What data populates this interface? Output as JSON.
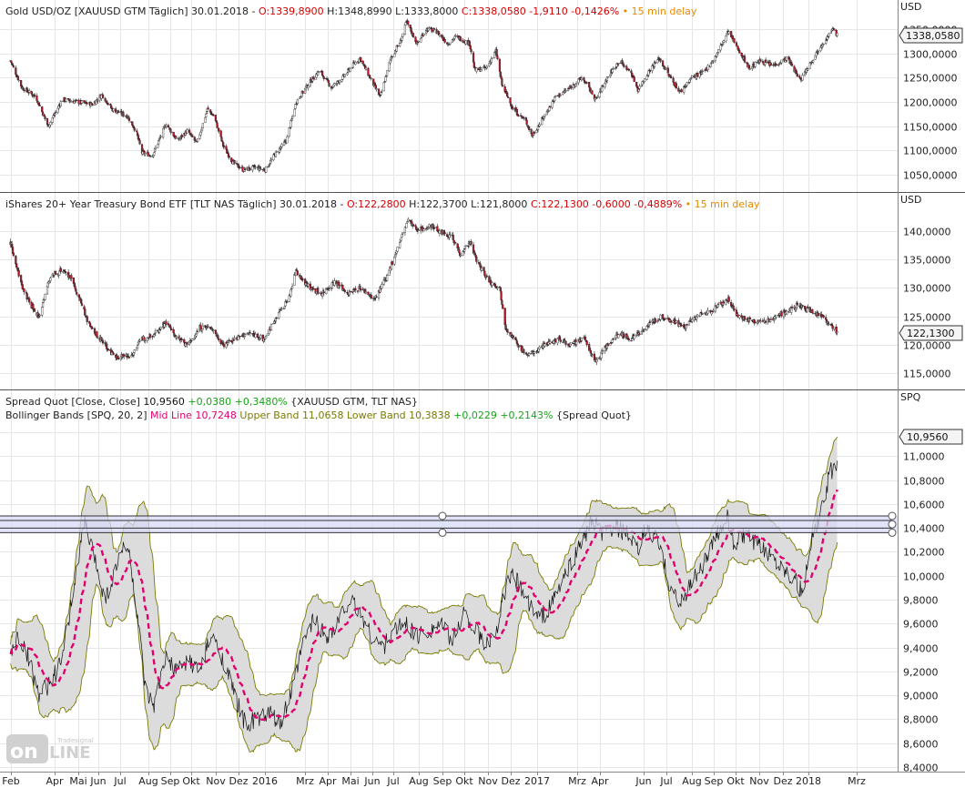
{
  "colors": {
    "up": "#ffffff",
    "down": "#b01c2c",
    "wick": "#222222",
    "grid": "#e6e6e6",
    "separator": "#555555",
    "ohlc_red": "#d40000",
    "delay_orange": "#e68a00",
    "midline": "#e0006e",
    "bands": "#7a7a00",
    "bandfill": "#dcdcdc",
    "spread": "#111111",
    "change_green": "#1aa31a",
    "zone_fill": "#d7d9f5",
    "zone_line": "#333333"
  },
  "panels": [
    {
      "unit": "USD",
      "legend": {
        "name": "Gold USD/OZ [XAUUSD GTM Täglich] 30.01.2018 - ",
        "open": "O:1339,8900",
        "high": " H:1348,8990",
        "low": " L:1333,8000 ",
        "close_change": "C:1338,0580 -1,9110 -0,1426%",
        "delay": " • 15 min delay"
      },
      "last_value": "1338,0580",
      "y_ticks": [
        "1050,0000",
        "1100,0000",
        "1150,0000",
        "1200,0000",
        "1250,0000",
        "1300,0000",
        "1350,0000"
      ]
    },
    {
      "unit": "USD",
      "legend": {
        "name": "iShares 20+ Year Treasury Bond ETF [TLT NAS Täglich] 30.01.2018 - ",
        "open": "O:122,2800",
        "high": " H:122,3700",
        "low": " L:121,8000 ",
        "close_change": "C:122,1300 -0,6000 -0,4889%",
        "delay": " • 15 min delay"
      },
      "last_value": "122,1300",
      "y_ticks": [
        "115,0000",
        "120,0000",
        "125,0000",
        "130,0000",
        "135,0000",
        "140,0000"
      ]
    },
    {
      "unit": "SPQ",
      "legend1": {
        "name": "Spread Quot [Close, Close] ",
        "last": "10,9560",
        "change": " +0,0380 +0,3480%",
        "params": " {XAUUSD GTM, TLT NAS}"
      },
      "legend2": {
        "name": "Bollinger Bands [SPQ, 20, 2] ",
        "mid": "Mid Line 10,7248",
        "upper": " Upper Band 11,0658",
        "lower": " Lower Band 10,3838",
        "change": " +0,0229 +0,2143%",
        "params": " {Spread Quot}"
      },
      "last_value": "10,9560",
      "y_ticks": [
        "8,4000",
        "8,6000",
        "8,8000",
        "9,0000",
        "9,2000",
        "9,4000",
        "9,6000",
        "9,8000",
        "10,0000",
        "10,2000",
        "10,4000",
        "10,6000",
        "10,8000",
        "11,0000",
        "11,2000"
      ]
    }
  ],
  "x_labels": [
    "Feb",
    "Apr",
    "Mai",
    "Jun",
    "Jul",
    "Aug",
    "Sep",
    "Okt",
    "Nov",
    "Dez",
    "2016",
    "Mrz",
    "Apr",
    "Mai",
    "Jun",
    "Jul",
    "Aug",
    "Sep",
    "Okt",
    "Nov",
    "Dez",
    "2017",
    "Mrz",
    "Apr",
    "Jun",
    "Jul",
    "Aug",
    "Sep",
    "Okt",
    "Nov",
    "Dez",
    "2018",
    "Mrz"
  ],
  "chart_data": [
    {
      "type": "candlestick",
      "title": "Gold USD/OZ [XAUUSD GTM Täglich]",
      "ylabel": "USD",
      "ylim": [
        1000,
        1380
      ],
      "last": 1338.058,
      "close_path": [
        [
          "2015-01-26",
          1285
        ],
        [
          "2015-02-10",
          1230
        ],
        [
          "2015-03-01",
          1210
        ],
        [
          "2015-03-17",
          1150
        ],
        [
          "2015-04-05",
          1205
        ],
        [
          "2015-04-25",
          1200
        ],
        [
          "2015-05-15",
          1195
        ],
        [
          "2015-05-28",
          1215
        ],
        [
          "2015-06-10",
          1185
        ],
        [
          "2015-07-01",
          1170
        ],
        [
          "2015-07-12",
          1140
        ],
        [
          "2015-07-20",
          1095
        ],
        [
          "2015-08-03",
          1090
        ],
        [
          "2015-08-21",
          1155
        ],
        [
          "2015-09-05",
          1120
        ],
        [
          "2015-09-18",
          1140
        ],
        [
          "2015-10-01",
          1115
        ],
        [
          "2015-10-15",
          1185
        ],
        [
          "2015-10-24",
          1170
        ],
        [
          "2015-11-05",
          1110
        ],
        [
          "2015-11-18",
          1075
        ],
        [
          "2015-12-02",
          1060
        ],
        [
          "2015-12-17",
          1065
        ],
        [
          "2015-12-31",
          1060
        ],
        [
          "2016-01-12",
          1090
        ],
        [
          "2016-01-28",
          1120
        ],
        [
          "2016-02-10",
          1200
        ],
        [
          "2016-02-28",
          1240
        ],
        [
          "2016-03-12",
          1265
        ],
        [
          "2016-03-28",
          1230
        ],
        [
          "2016-04-12",
          1250
        ],
        [
          "2016-04-28",
          1280
        ],
        [
          "2016-05-05",
          1290
        ],
        [
          "2016-05-20",
          1245
        ],
        [
          "2016-06-01",
          1210
        ],
        [
          "2016-06-15",
          1290
        ],
        [
          "2016-06-28",
          1325
        ],
        [
          "2016-07-06",
          1365
        ],
        [
          "2016-07-20",
          1320
        ],
        [
          "2016-08-01",
          1350
        ],
        [
          "2016-08-15",
          1345
        ],
        [
          "2016-08-30",
          1320
        ],
        [
          "2016-09-10",
          1335
        ],
        [
          "2016-09-28",
          1320
        ],
        [
          "2016-10-05",
          1265
        ],
        [
          "2016-10-20",
          1270
        ],
        [
          "2016-11-02",
          1305
        ],
        [
          "2016-11-10",
          1235
        ],
        [
          "2016-11-25",
          1185
        ],
        [
          "2016-12-12",
          1160
        ],
        [
          "2016-12-20",
          1130
        ],
        [
          "2017-01-05",
          1170
        ],
        [
          "2017-01-20",
          1210
        ],
        [
          "2017-02-05",
          1225
        ],
        [
          "2017-02-25",
          1250
        ],
        [
          "2017-03-15",
          1205
        ],
        [
          "2017-03-30",
          1250
        ],
        [
          "2017-04-15",
          1285
        ],
        [
          "2017-05-01",
          1260
        ],
        [
          "2017-05-10",
          1225
        ],
        [
          "2017-05-25",
          1265
        ],
        [
          "2017-06-07",
          1290
        ],
        [
          "2017-06-20",
          1255
        ],
        [
          "2017-07-05",
          1220
        ],
        [
          "2017-07-20",
          1250
        ],
        [
          "2017-08-05",
          1260
        ],
        [
          "2017-08-20",
          1290
        ],
        [
          "2017-09-07",
          1345
        ],
        [
          "2017-09-20",
          1310
        ],
        [
          "2017-10-05",
          1270
        ],
        [
          "2017-10-20",
          1285
        ],
        [
          "2017-11-05",
          1275
        ],
        [
          "2017-11-25",
          1290
        ],
        [
          "2017-12-12",
          1245
        ],
        [
          "2017-12-25",
          1280
        ],
        [
          "2018-01-10",
          1320
        ],
        [
          "2018-01-25",
          1350
        ],
        [
          "2018-01-30",
          1338
        ]
      ]
    },
    {
      "type": "candlestick",
      "title": "iShares 20+ Year Treasury Bond ETF [TLT NAS Täglich]",
      "ylabel": "USD",
      "ylim": [
        113,
        144
      ],
      "last": 122.13,
      "close_path": [
        [
          "2015-01-26",
          138
        ],
        [
          "2015-02-08",
          131
        ],
        [
          "2015-02-22",
          127
        ],
        [
          "2015-03-05",
          125
        ],
        [
          "2015-03-20",
          132
        ],
        [
          "2015-04-02",
          133
        ],
        [
          "2015-04-15",
          132
        ],
        [
          "2015-04-28",
          128
        ],
        [
          "2015-05-12",
          123
        ],
        [
          "2015-06-01",
          120
        ],
        [
          "2015-06-12",
          118
        ],
        [
          "2015-07-05",
          118
        ],
        [
          "2015-07-20",
          121
        ],
        [
          "2015-08-05",
          122
        ],
        [
          "2015-08-21",
          124
        ],
        [
          "2015-09-05",
          121
        ],
        [
          "2015-09-20",
          120
        ],
        [
          "2015-10-05",
          123
        ],
        [
          "2015-10-20",
          123
        ],
        [
          "2015-11-05",
          120
        ],
        [
          "2015-11-20",
          121
        ],
        [
          "2015-12-10",
          122
        ],
        [
          "2015-12-30",
          121
        ],
        [
          "2016-01-15",
          125
        ],
        [
          "2016-01-31",
          128
        ],
        [
          "2016-02-10",
          133
        ],
        [
          "2016-02-28",
          130
        ],
        [
          "2016-03-15",
          129
        ],
        [
          "2016-04-01",
          131
        ],
        [
          "2016-04-20",
          129
        ],
        [
          "2016-05-05",
          130
        ],
        [
          "2016-05-25",
          128
        ],
        [
          "2016-06-10",
          132
        ],
        [
          "2016-06-24",
          137
        ],
        [
          "2016-07-08",
          142
        ],
        [
          "2016-07-20",
          140
        ],
        [
          "2016-08-05",
          141
        ],
        [
          "2016-08-20",
          140
        ],
        [
          "2016-09-05",
          139
        ],
        [
          "2016-09-15",
          136
        ],
        [
          "2016-09-28",
          138
        ],
        [
          "2016-10-10",
          134
        ],
        [
          "2016-10-25",
          131
        ],
        [
          "2016-11-07",
          130
        ],
        [
          "2016-11-15",
          123
        ],
        [
          "2016-12-01",
          120
        ],
        [
          "2016-12-15",
          118
        ],
        [
          "2017-01-05",
          120
        ],
        [
          "2017-01-25",
          121
        ],
        [
          "2017-02-10",
          120
        ],
        [
          "2017-02-28",
          121
        ],
        [
          "2017-03-14",
          117
        ],
        [
          "2017-03-31",
          120
        ],
        [
          "2017-04-15",
          122
        ],
        [
          "2017-05-01",
          121
        ],
        [
          "2017-05-20",
          123
        ],
        [
          "2017-06-10",
          125
        ],
        [
          "2017-06-28",
          124
        ],
        [
          "2017-07-10",
          123
        ],
        [
          "2017-07-28",
          125
        ],
        [
          "2017-08-15",
          126
        ],
        [
          "2017-09-07",
          128
        ],
        [
          "2017-09-20",
          125
        ],
        [
          "2017-10-10",
          124
        ],
        [
          "2017-10-25",
          124
        ],
        [
          "2017-11-10",
          125
        ],
        [
          "2017-11-25",
          126
        ],
        [
          "2017-12-10",
          127
        ],
        [
          "2017-12-25",
          126
        ],
        [
          "2018-01-10",
          125
        ],
        [
          "2018-01-25",
          123
        ],
        [
          "2018-01-30",
          122
        ]
      ]
    },
    {
      "type": "line",
      "title": "Spread Quot [Close, Close]",
      "ylabel": "SPQ",
      "ylim": [
        8.2,
        11.3
      ],
      "spread_path": [
        [
          "2015-01-26",
          9.35
        ],
        [
          "2015-02-05",
          9.5
        ],
        [
          "2015-02-20",
          9.3
        ],
        [
          "2015-03-05",
          9.0
        ],
        [
          "2015-03-20",
          9.1
        ],
        [
          "2015-04-05",
          9.3
        ],
        [
          "2015-04-15",
          9.7
        ],
        [
          "2015-04-25",
          10.1
        ],
        [
          "2015-05-05",
          10.45
        ],
        [
          "2015-05-20",
          10.1
        ],
        [
          "2015-06-01",
          9.8
        ],
        [
          "2015-06-15",
          10.05
        ],
        [
          "2015-06-28",
          10.3
        ],
        [
          "2015-07-05",
          10.1
        ],
        [
          "2015-07-15",
          9.6
        ],
        [
          "2015-07-25",
          9.0
        ],
        [
          "2015-08-05",
          8.9
        ],
        [
          "2015-08-20",
          9.3
        ],
        [
          "2015-09-05",
          9.2
        ],
        [
          "2015-09-20",
          9.3
        ],
        [
          "2015-10-05",
          9.2
        ],
        [
          "2015-10-20",
          9.5
        ],
        [
          "2015-11-05",
          9.3
        ],
        [
          "2015-11-20",
          9.0
        ],
        [
          "2015-12-05",
          8.75
        ],
        [
          "2015-12-20",
          8.8
        ],
        [
          "2016-01-05",
          8.85
        ],
        [
          "2016-01-20",
          8.75
        ],
        [
          "2016-02-05",
          9.05
        ],
        [
          "2016-02-20",
          9.45
        ],
        [
          "2016-03-05",
          9.65
        ],
        [
          "2016-03-20",
          9.5
        ],
        [
          "2016-04-01",
          9.55
        ],
        [
          "2016-04-20",
          9.8
        ],
        [
          "2016-05-05",
          9.7
        ],
        [
          "2016-05-20",
          9.5
        ],
        [
          "2016-06-05",
          9.4
        ],
        [
          "2016-06-20",
          9.55
        ],
        [
          "2016-07-05",
          9.6
        ],
        [
          "2016-07-20",
          9.5
        ],
        [
          "2016-08-05",
          9.55
        ],
        [
          "2016-08-20",
          9.6
        ],
        [
          "2016-09-05",
          9.45
        ],
        [
          "2016-09-20",
          9.7
        ],
        [
          "2016-10-05",
          9.55
        ],
        [
          "2016-10-20",
          9.4
        ],
        [
          "2016-11-05",
          9.6
        ],
        [
          "2016-11-15",
          9.9
        ],
        [
          "2016-11-25",
          10.0
        ],
        [
          "2016-12-10",
          9.85
        ],
        [
          "2016-12-25",
          9.65
        ],
        [
          "2017-01-10",
          9.7
        ],
        [
          "2017-01-25",
          9.9
        ],
        [
          "2017-02-10",
          10.1
        ],
        [
          "2017-02-25",
          10.3
        ],
        [
          "2017-03-10",
          10.45
        ],
        [
          "2017-03-25",
          10.35
        ],
        [
          "2017-04-10",
          10.4
        ],
        [
          "2017-04-25",
          10.35
        ],
        [
          "2017-05-10",
          10.2
        ],
        [
          "2017-05-20",
          10.4
        ],
        [
          "2017-06-05",
          10.3
        ],
        [
          "2017-06-20",
          9.95
        ],
        [
          "2017-07-05",
          9.75
        ],
        [
          "2017-07-20",
          9.95
        ],
        [
          "2017-08-05",
          10.1
        ],
        [
          "2017-08-20",
          10.3
        ],
        [
          "2017-09-05",
          10.5
        ],
        [
          "2017-09-15",
          10.25
        ],
        [
          "2017-09-30",
          10.35
        ],
        [
          "2017-10-15",
          10.25
        ],
        [
          "2017-10-30",
          10.2
        ],
        [
          "2017-11-15",
          10.1
        ],
        [
          "2017-12-01",
          10.0
        ],
        [
          "2017-12-15",
          9.85
        ],
        [
          "2017-12-28",
          10.3
        ],
        [
          "2018-01-10",
          10.55
        ],
        [
          "2018-01-20",
          10.85
        ],
        [
          "2018-01-30",
          10.956
        ]
      ],
      "bollinger": {
        "period": 20,
        "stddev": 2,
        "mid": 10.7248,
        "upper": 11.0658,
        "lower": 10.3838
      },
      "horizontal_zone": [
        10.36,
        10.5
      ]
    }
  ]
}
